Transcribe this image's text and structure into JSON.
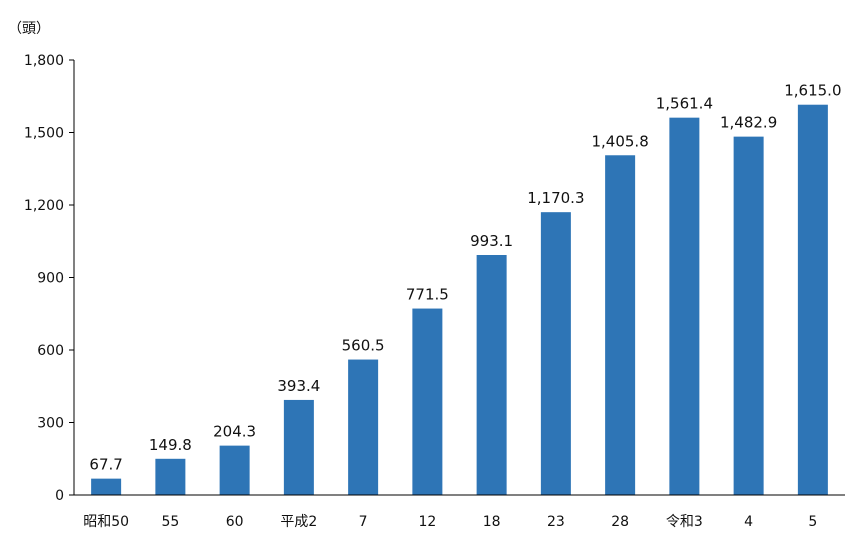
{
  "chart_data": {
    "type": "bar",
    "unit_label": "（頭）",
    "categories": [
      "昭和50",
      "55",
      "60",
      "平成2",
      "7",
      "12",
      "18",
      "23",
      "28",
      "令和3",
      "4",
      "5"
    ],
    "values": [
      67.7,
      149.8,
      204.3,
      393.4,
      560.5,
      771.5,
      993.1,
      1170.3,
      1405.8,
      1561.4,
      1482.9,
      1615.0
    ],
    "value_labels": [
      "67.7",
      "149.8",
      "204.3",
      "393.4",
      "560.5",
      "771.5",
      "993.1",
      "1,170.3",
      "1,405.8",
      "1,561.4",
      "1,482.9",
      "1,615.0"
    ],
    "ylim": [
      0,
      1800
    ],
    "yticks": [
      0,
      300,
      600,
      900,
      1200,
      1500,
      1800
    ],
    "ytick_labels": [
      "0",
      "300",
      "600",
      "900",
      "1,200",
      "1,500",
      "1,800"
    ],
    "bar_color": "#2e75b6",
    "axis_color": "#000000",
    "grid": false,
    "legend": "none"
  }
}
